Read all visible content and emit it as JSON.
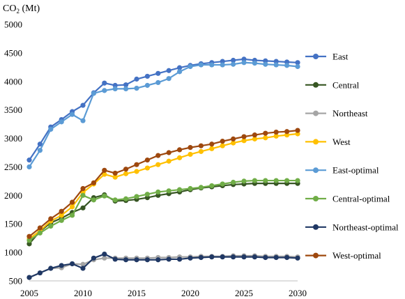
{
  "chart_data": {
    "type": "line",
    "ylabel_main": "CO",
    "ylabel_sub": "2",
    "ylabel_unit": " (Mt)",
    "xlim": [
      2005,
      2030
    ],
    "ylim": [
      500,
      5000
    ],
    "x_ticks": [
      "2005",
      "2010",
      "2015",
      "2020",
      "2025",
      "2030"
    ],
    "y_ticks": [
      "500",
      "1000",
      "1500",
      "2000",
      "2500",
      "3000",
      "3500",
      "4000",
      "4500",
      "5000"
    ],
    "grid": false,
    "legend_position": "right",
    "x": [
      2005,
      2006,
      2007,
      2008,
      2009,
      2010,
      2011,
      2012,
      2013,
      2014,
      2015,
      2016,
      2017,
      2018,
      2019,
      2020,
      2021,
      2022,
      2023,
      2024,
      2025,
      2026,
      2027,
      2028,
      2029,
      2030
    ],
    "series": [
      {
        "name": "East",
        "color": "#4472C4",
        "values": [
          2620,
          2900,
          3200,
          3330,
          3470,
          3580,
          3800,
          3970,
          3930,
          3940,
          4040,
          4090,
          4140,
          4190,
          4240,
          4280,
          4310,
          4330,
          4350,
          4370,
          4390,
          4370,
          4360,
          4350,
          4340,
          4330
        ]
      },
      {
        "name": "Central",
        "color": "#375623",
        "values": [
          1150,
          1370,
          1520,
          1600,
          1700,
          1780,
          1960,
          2010,
          1900,
          1910,
          1930,
          1960,
          2000,
          2030,
          2060,
          2100,
          2130,
          2150,
          2170,
          2190,
          2200,
          2210,
          2210,
          2210,
          2210,
          2210
        ]
      },
      {
        "name": "Northeast",
        "color": "#A5A5A5",
        "values": [
          560,
          640,
          720,
          730,
          800,
          790,
          870,
          900,
          900,
          900,
          900,
          900,
          910,
          910,
          920,
          920,
          930,
          930,
          930,
          940,
          940,
          940,
          930,
          930,
          930,
          920
        ]
      },
      {
        "name": "West",
        "color": "#FFC000",
        "values": [
          1240,
          1380,
          1550,
          1650,
          1800,
          2050,
          2200,
          2370,
          2320,
          2380,
          2420,
          2480,
          2540,
          2600,
          2660,
          2720,
          2770,
          2820,
          2870,
          2920,
          2960,
          2990,
          3010,
          3040,
          3060,
          3080
        ]
      },
      {
        "name": "East-optimal",
        "color": "#5B9BD5",
        "values": [
          2500,
          2790,
          3160,
          3290,
          3420,
          3310,
          3790,
          3840,
          3870,
          3870,
          3880,
          3930,
          3980,
          4050,
          4170,
          4260,
          4290,
          4290,
          4290,
          4300,
          4330,
          4320,
          4300,
          4290,
          4280,
          4260
        ]
      },
      {
        "name": "Central-optimal",
        "color": "#70AD47",
        "values": [
          1210,
          1340,
          1460,
          1560,
          1650,
          2000,
          1920,
          1990,
          1920,
          1940,
          1980,
          2020,
          2060,
          2080,
          2100,
          2120,
          2140,
          2170,
          2200,
          2230,
          2250,
          2260,
          2260,
          2260,
          2260,
          2260
        ]
      },
      {
        "name": "Northeast-optimal",
        "color": "#203864",
        "values": [
          560,
          640,
          720,
          770,
          800,
          720,
          900,
          970,
          880,
          870,
          870,
          870,
          870,
          880,
          880,
          900,
          910,
          920,
          920,
          920,
          920,
          920,
          910,
          910,
          910,
          900
        ]
      },
      {
        "name": "West-optimal",
        "color": "#9E480E",
        "values": [
          1280,
          1430,
          1590,
          1720,
          1880,
          2120,
          2220,
          2440,
          2390,
          2460,
          2540,
          2620,
          2700,
          2750,
          2800,
          2840,
          2870,
          2900,
          2950,
          2990,
          3030,
          3060,
          3090,
          3110,
          3120,
          3140
        ]
      }
    ]
  }
}
